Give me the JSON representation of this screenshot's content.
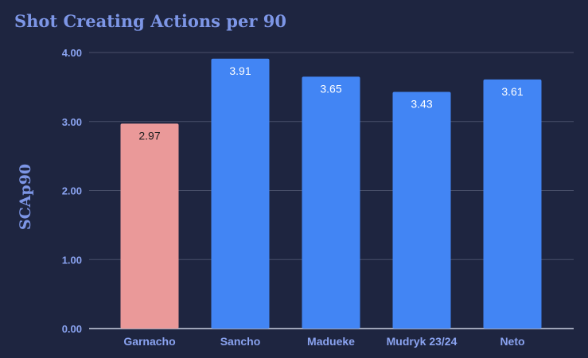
{
  "chart_data": {
    "type": "bar",
    "title": "Shot Creating Actions per 90",
    "ylabel": "SCAp90",
    "xlabel": "",
    "categories": [
      "Garnacho",
      "Sancho",
      "Madueke",
      "Mudryk 23/24",
      "Neto"
    ],
    "values": [
      2.97,
      3.91,
      3.65,
      3.43,
      3.61
    ],
    "value_labels": [
      "2.97",
      "3.91",
      "3.65",
      "3.43",
      "3.61"
    ],
    "ylim": [
      0,
      4
    ],
    "yticks": [
      0,
      1,
      2,
      3,
      4
    ],
    "ytick_labels": [
      "0.00",
      "1.00",
      "2.00",
      "3.00",
      "4.00"
    ],
    "grid": true,
    "bar_colors": [
      "#ea9999",
      "#4285f4",
      "#4285f4",
      "#4285f4",
      "#4285f4"
    ],
    "label_colors": [
      "#1e1e1e",
      "#ffffff",
      "#ffffff",
      "#ffffff",
      "#ffffff"
    ],
    "grid_color": "#49506a",
    "axis_color": "#c9cfe0"
  }
}
